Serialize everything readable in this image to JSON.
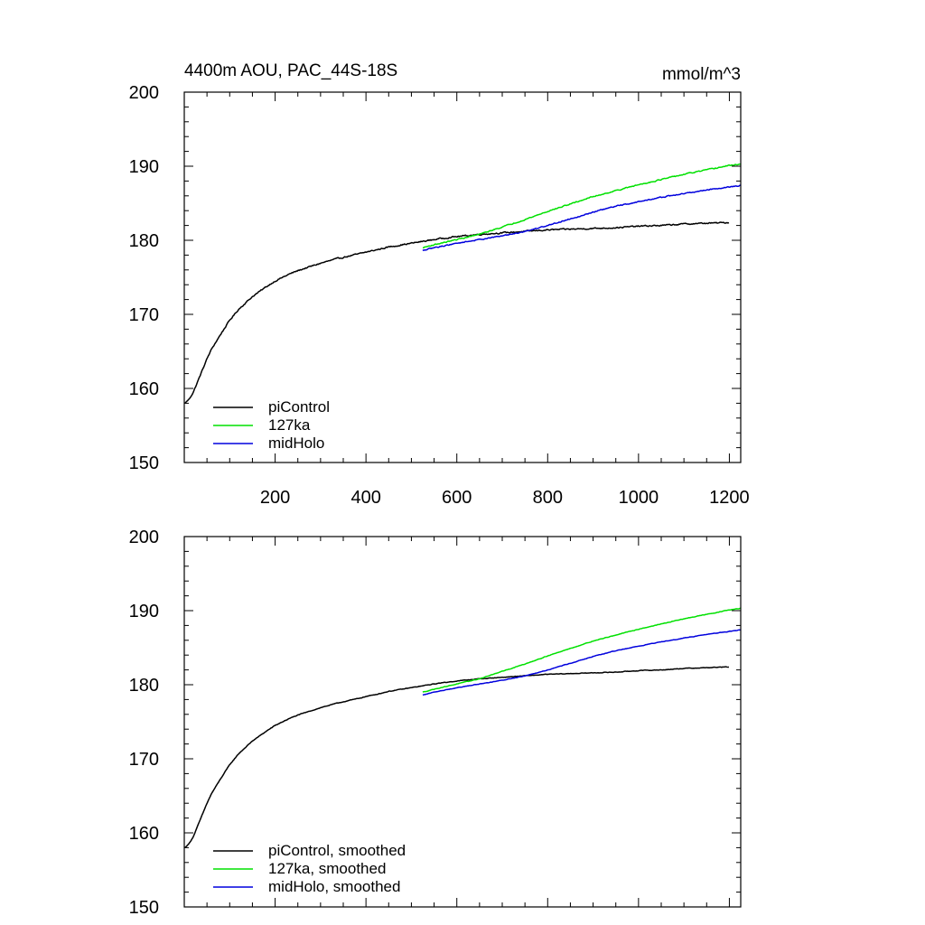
{
  "chart_data": [
    {
      "type": "line",
      "title": "4400m AOU, PAC_44S-18S",
      "units": "mmol/m^3",
      "xlabel": "",
      "ylabel": "",
      "xlim": [
        0,
        1225
      ],
      "ylim": [
        150,
        200
      ],
      "x_ticks": [
        200,
        400,
        600,
        800,
        1000,
        1200
      ],
      "y_ticks": [
        150,
        160,
        170,
        180,
        190,
        200
      ],
      "grid": false,
      "legend_position": "bottom-left",
      "series": [
        {
          "name": "piControl",
          "color": "#000000",
          "x": [
            1,
            10,
            20,
            30,
            40,
            50,
            60,
            80,
            100,
            120,
            150,
            180,
            200,
            230,
            250,
            280,
            300,
            330,
            350,
            380,
            400,
            430,
            450,
            480,
            500,
            530,
            560,
            600,
            650,
            700,
            750,
            800,
            850,
            900,
            950,
            1000,
            1050,
            1100,
            1150,
            1200
          ],
          "y": [
            158.0,
            158.5,
            159.5,
            161.0,
            162.5,
            164.0,
            165.3,
            167.3,
            169.2,
            170.7,
            172.4,
            173.7,
            174.5,
            175.4,
            175.9,
            176.5,
            176.9,
            177.4,
            177.7,
            178.1,
            178.4,
            178.8,
            179.1,
            179.4,
            179.6,
            179.9,
            180.2,
            180.5,
            180.8,
            181.0,
            181.2,
            181.4,
            181.5,
            181.6,
            181.7,
            181.9,
            182.0,
            182.2,
            182.3,
            182.4
          ],
          "noise": 0.15
        },
        {
          "name": "127ka",
          "color": "#00e000",
          "x": [
            525,
            550,
            600,
            650,
            700,
            750,
            800,
            850,
            900,
            950,
            1000,
            1050,
            1100,
            1150,
            1200,
            1225
          ],
          "y": [
            179.0,
            179.4,
            180.1,
            180.8,
            181.8,
            182.8,
            183.9,
            184.9,
            185.9,
            186.7,
            187.5,
            188.2,
            188.9,
            189.5,
            190.1,
            190.3
          ],
          "noise": 0.12
        },
        {
          "name": "midHolo",
          "color": "#0000dd",
          "x": [
            525,
            550,
            600,
            650,
            700,
            750,
            800,
            850,
            900,
            950,
            1000,
            1050,
            1100,
            1150,
            1200,
            1225
          ],
          "y": [
            178.6,
            179.0,
            179.6,
            180.1,
            180.6,
            181.2,
            182.0,
            182.9,
            183.8,
            184.6,
            185.2,
            185.8,
            186.3,
            186.8,
            187.2,
            187.4
          ],
          "noise": 0.12
        }
      ]
    },
    {
      "type": "line",
      "title": "",
      "units": "",
      "xlabel": "",
      "ylabel": "",
      "xlim": [
        0,
        1225
      ],
      "ylim": [
        150,
        200
      ],
      "x_ticks": [],
      "y_ticks": [
        150,
        160,
        170,
        180,
        190,
        200
      ],
      "grid": false,
      "legend_position": "bottom-left",
      "series": [
        {
          "name": "piControl, smoothed",
          "color": "#000000",
          "x": [
            1,
            10,
            20,
            30,
            40,
            50,
            60,
            80,
            100,
            120,
            150,
            180,
            200,
            230,
            250,
            280,
            300,
            330,
            350,
            380,
            400,
            430,
            450,
            480,
            500,
            530,
            560,
            600,
            650,
            700,
            750,
            800,
            850,
            900,
            950,
            1000,
            1050,
            1100,
            1150,
            1200
          ],
          "y": [
            158.0,
            158.5,
            159.5,
            161.0,
            162.5,
            164.0,
            165.3,
            167.3,
            169.2,
            170.7,
            172.4,
            173.7,
            174.5,
            175.4,
            175.9,
            176.5,
            176.9,
            177.4,
            177.7,
            178.1,
            178.4,
            178.8,
            179.1,
            179.4,
            179.6,
            179.9,
            180.2,
            180.5,
            180.8,
            181.0,
            181.2,
            181.4,
            181.5,
            181.6,
            181.7,
            181.9,
            182.0,
            182.2,
            182.3,
            182.4
          ],
          "noise": 0.07
        },
        {
          "name": "127ka, smoothed",
          "color": "#00e000",
          "x": [
            525,
            550,
            600,
            650,
            700,
            750,
            800,
            850,
            900,
            950,
            1000,
            1050,
            1100,
            1150,
            1200,
            1225
          ],
          "y": [
            179.0,
            179.4,
            180.1,
            180.8,
            181.8,
            182.8,
            183.9,
            184.9,
            185.9,
            186.7,
            187.5,
            188.2,
            188.9,
            189.5,
            190.1,
            190.3
          ],
          "noise": 0.06
        },
        {
          "name": "midHolo, smoothed",
          "color": "#0000dd",
          "x": [
            525,
            550,
            600,
            650,
            700,
            750,
            800,
            850,
            900,
            950,
            1000,
            1050,
            1100,
            1150,
            1200,
            1225
          ],
          "y": [
            178.6,
            179.0,
            179.6,
            180.1,
            180.6,
            181.2,
            182.0,
            182.9,
            183.8,
            184.6,
            185.2,
            185.8,
            186.3,
            186.8,
            187.2,
            187.4
          ],
          "noise": 0.06
        }
      ]
    }
  ]
}
